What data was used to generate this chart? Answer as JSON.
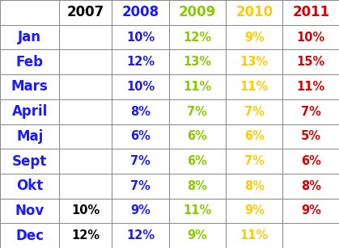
{
  "headers": [
    "",
    "2007",
    "2008",
    "2009",
    "2010",
    "2011"
  ],
  "header_colors": [
    "#000000",
    "#000000",
    "#1a1aff",
    "#88cc00",
    "#ffcc00",
    "#dd0000"
  ],
  "months": [
    "Jan",
    "Feb",
    "Mars",
    "April",
    "Maj",
    "Sept",
    "Okt",
    "Nov",
    "Dec"
  ],
  "month_color": "#1a1aff",
  "data": [
    [
      "",
      "10%",
      "12%",
      "9%",
      "10%"
    ],
    [
      "",
      "12%",
      "13%",
      "13%",
      "15%"
    ],
    [
      "",
      "10%",
      "11%",
      "11%",
      "11%"
    ],
    [
      "",
      "8%",
      "7%",
      "7%",
      "7%"
    ],
    [
      "",
      "6%",
      "6%",
      "6%",
      "5%"
    ],
    [
      "",
      "7%",
      "6%",
      "7%",
      "6%"
    ],
    [
      "",
      "7%",
      "8%",
      "8%",
      "8%"
    ],
    [
      "10%",
      "9%",
      "11%",
      "9%",
      "9%"
    ],
    [
      "12%",
      "12%",
      "9%",
      "11%",
      ""
    ]
  ],
  "col_colors": [
    "#000000",
    "#1a1aff",
    "#88cc00",
    "#ffcc00",
    "#dd0000"
  ],
  "background_color": "#ffffff",
  "grid_color": "#888888",
  "cell_bg": "#ffffff",
  "fontsize": 10.5,
  "header_fontsize": 12,
  "month_fontsize": 12
}
